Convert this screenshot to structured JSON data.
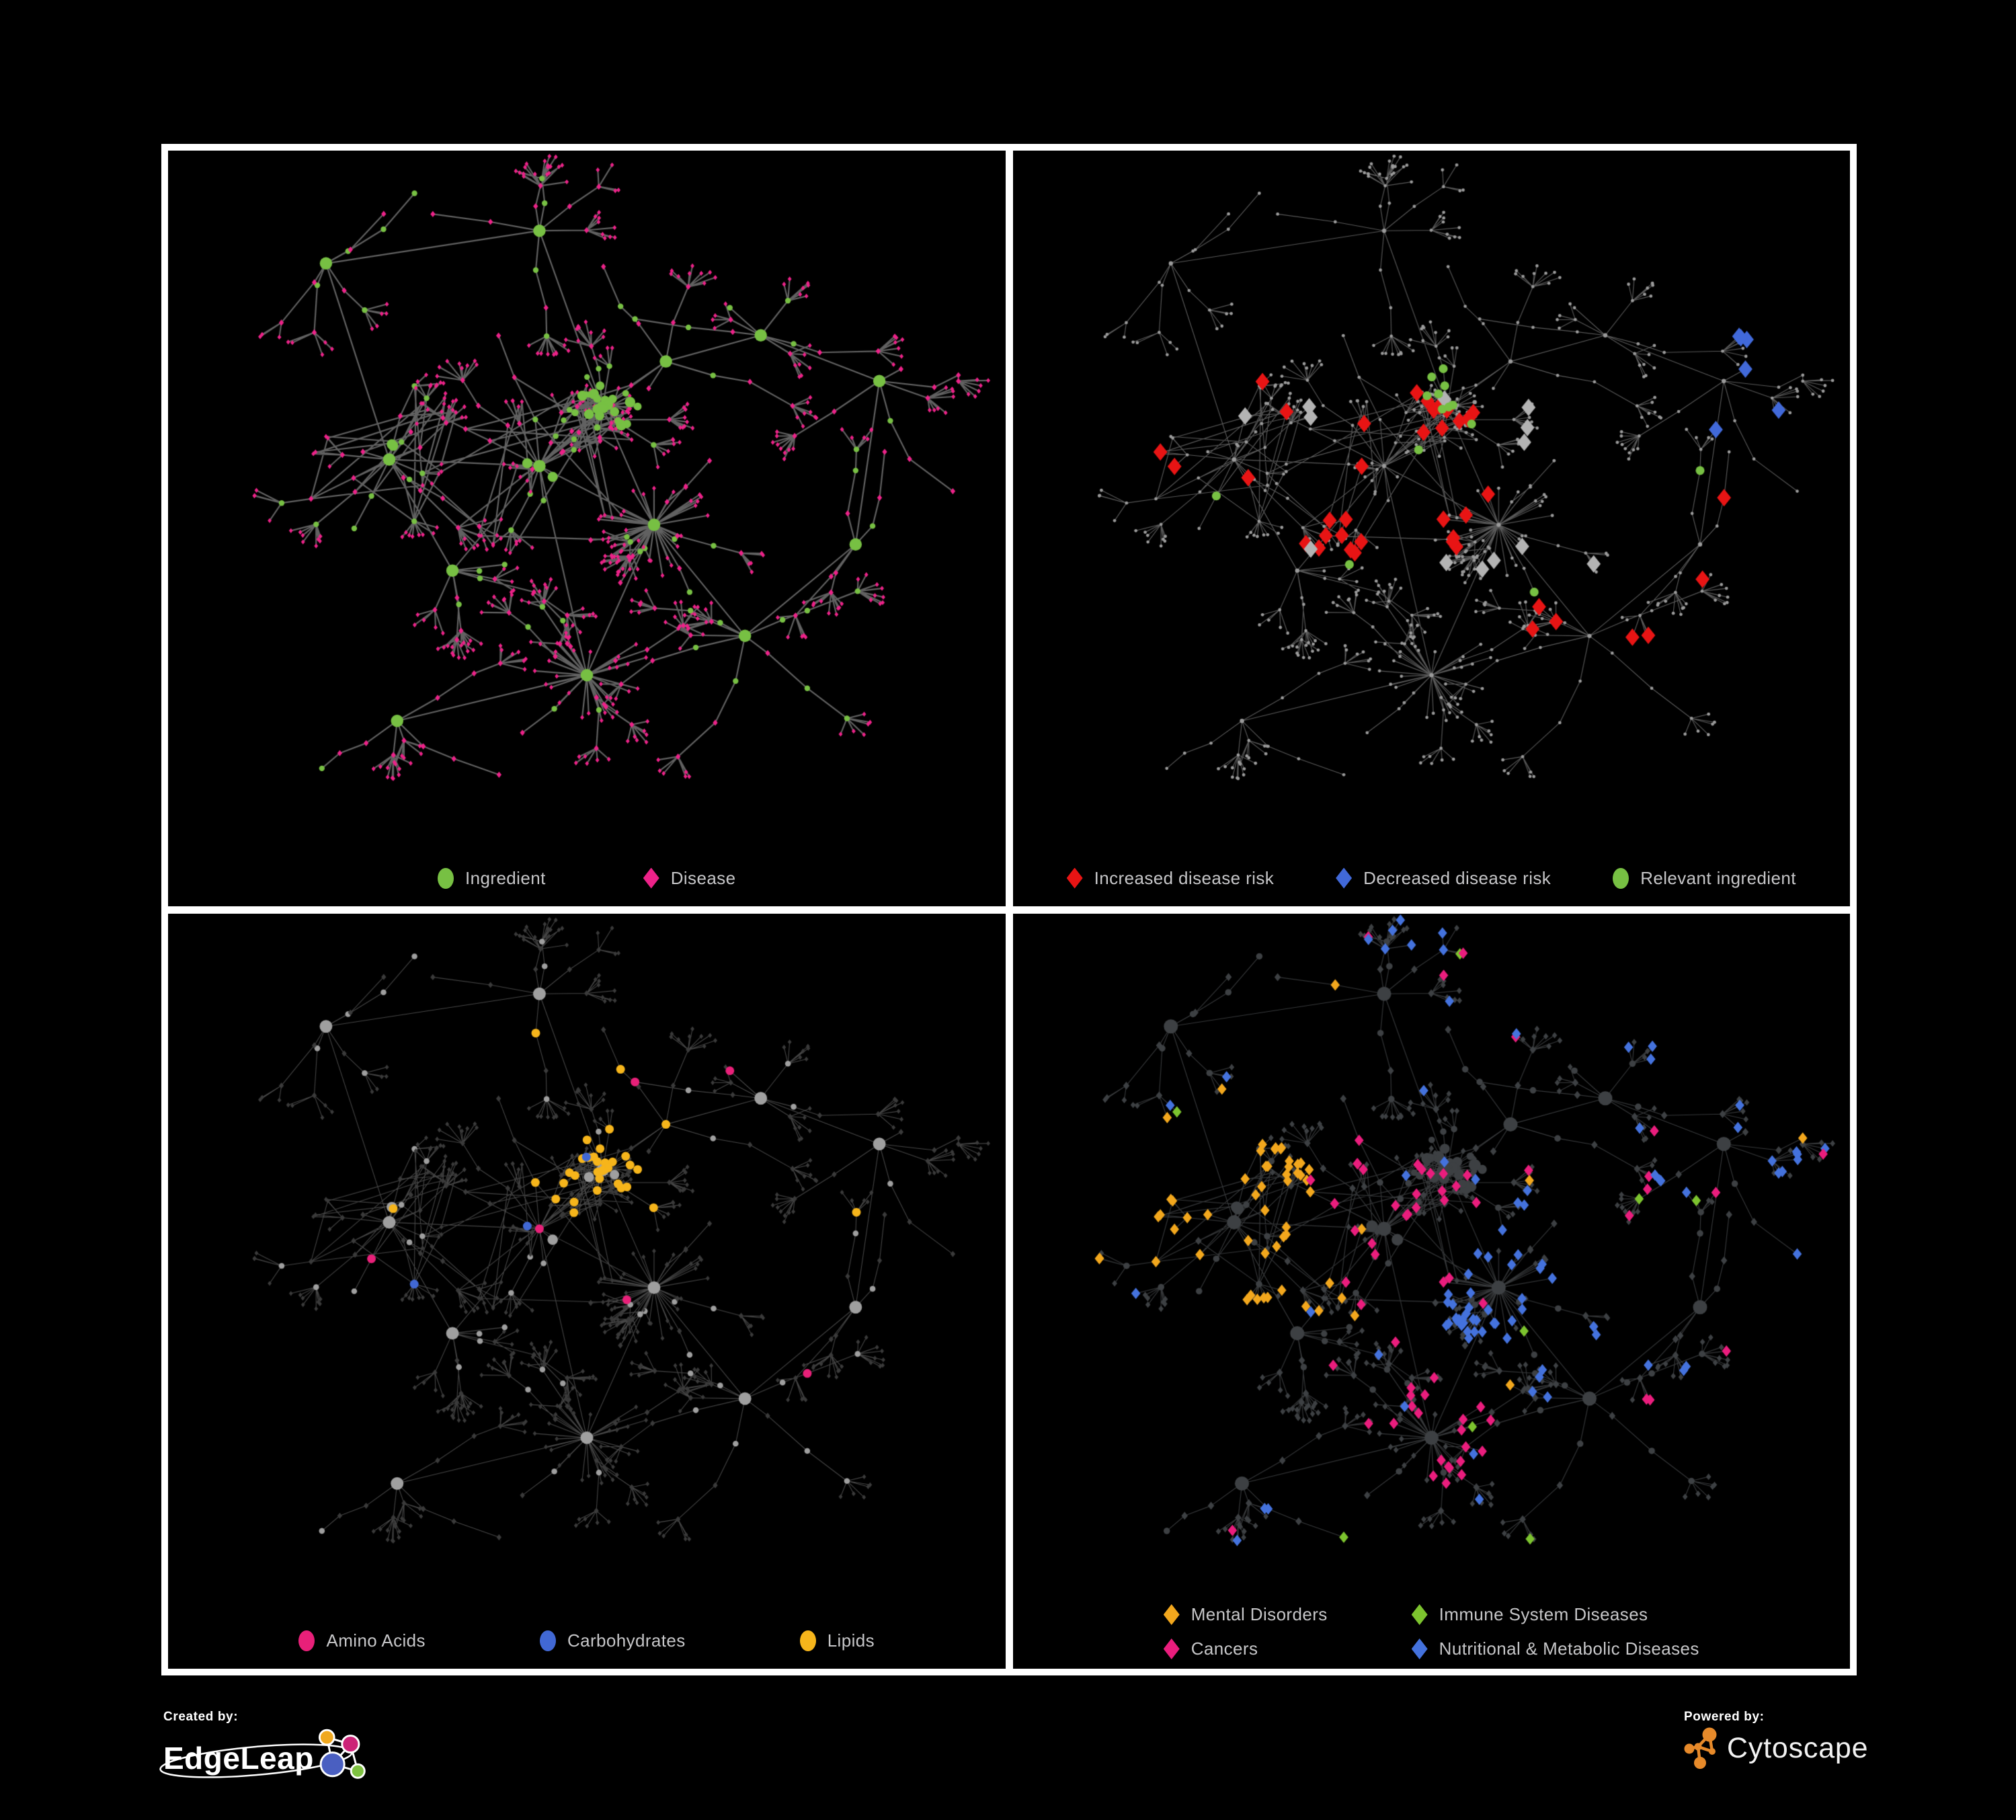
{
  "figure": {
    "background": "#000000",
    "panel_background": "#000000",
    "frame_color": "#ffffff",
    "legend_text_color": "#c6c6c8"
  },
  "panels": [
    {
      "name": "ingredients-and-diseases",
      "legend": [
        {
          "label": "Ingredient",
          "shape": "circle",
          "color": "#77c043"
        },
        {
          "label": "Disease",
          "shape": "diamond",
          "color": "#ed2289"
        }
      ],
      "style": {
        "edge_color": "#6b6b6b"
      }
    },
    {
      "name": "disease-risk-highlights",
      "legend": [
        {
          "label": "Increased disease risk",
          "shape": "diamond",
          "color": "#e81414"
        },
        {
          "label": "Decreased disease risk",
          "shape": "diamond",
          "color": "#4169d9"
        },
        {
          "label": "Relevant ingredient",
          "shape": "circle",
          "color": "#77c043"
        }
      ],
      "style": {
        "edge_color": "#6f6f6f",
        "base_node_color": "#9a9a9a",
        "neutral_highlight_color": "#b3b3b3"
      }
    },
    {
      "name": "nutrient-classes",
      "legend": [
        {
          "label": "Amino Acids",
          "shape": "circle",
          "color": "#e82079"
        },
        {
          "label": "Carbohydrates",
          "shape": "circle",
          "color": "#4168d4"
        },
        {
          "label": "Lipids",
          "shape": "circle",
          "color": "#f6b51b"
        }
      ],
      "style": {
        "edge_color": "#8c8c8c",
        "ingredient_base_color": "#9f9f9f",
        "disease_base_color": "#3a3a3a"
      }
    },
    {
      "name": "disease-classes",
      "legend": [
        {
          "label": "Mental Disorders",
          "shape": "diamond",
          "color": "#f2a71d"
        },
        {
          "label": "Immune System Diseases",
          "shape": "diamond",
          "color": "#7cc32e"
        },
        {
          "label": "Cancers",
          "shape": "diamond",
          "color": "#ea1d7d"
        },
        {
          "label": "Nutritional & Metabolic Diseases",
          "shape": "diamond",
          "color": "#4472dd"
        }
      ],
      "style": {
        "edge_color": "#63666a",
        "base_node_color": "#3d4043"
      }
    }
  ],
  "footer": {
    "created_by_label": "Created by:",
    "brand_name": "EdgeLeap",
    "powered_by_label": "Powered by:",
    "engine_name": "Cytoscape",
    "edgeleap_logo_colors": {
      "orange": "#f0a81e",
      "magenta": "#cc2277",
      "blue": "#4a5fc1",
      "green": "#7ec141"
    },
    "cytoscape_logo_color": "#e78a2a"
  }
}
